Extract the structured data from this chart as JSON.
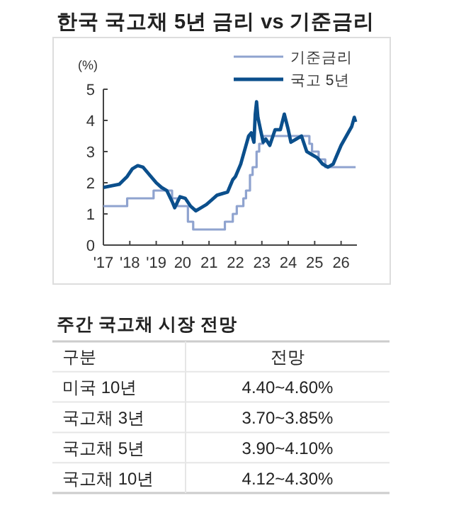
{
  "chart_data": [
    {
      "type": "line",
      "title": "한국 국고채 5년 금리 vs 기준금리",
      "ylabel": "(%)",
      "legend": "top right",
      "xlim": [
        2017,
        2026.6
      ],
      "ylim": [
        0,
        5
      ],
      "yticks": [
        0,
        1,
        2,
        3,
        4,
        5
      ],
      "xticks": [
        {
          "value": 2017,
          "label": "'17"
        },
        {
          "value": 2018,
          "label": "'18"
        },
        {
          "value": 2019,
          "label": "'19"
        },
        {
          "value": 2020,
          "label": "20"
        },
        {
          "value": 2021,
          "label": "21"
        },
        {
          "value": 2022,
          "label": "22"
        },
        {
          "value": 2023,
          "label": "23"
        },
        {
          "value": 2024,
          "label": "24"
        },
        {
          "value": 2025,
          "label": "25"
        },
        {
          "value": 2026,
          "label": "26"
        }
      ],
      "series": [
        {
          "name": "기준금리",
          "type": "step",
          "color": "#8fa3cf",
          "x": [
            2017,
            2017.9,
            2018.9,
            2019.6,
            2019.8,
            2020.2,
            2020.4,
            2021.6,
            2021.9,
            2022.05,
            2022.3,
            2022.4,
            2022.55,
            2022.65,
            2022.8,
            2022.9,
            2023.05,
            2024.8,
            2024.9,
            2025.15,
            2025.4,
            2026.55
          ],
          "values": [
            1.25,
            1.5,
            1.75,
            1.5,
            1.25,
            0.75,
            0.5,
            0.75,
            1.0,
            1.25,
            1.5,
            1.75,
            2.25,
            2.5,
            3.0,
            3.25,
            3.5,
            3.25,
            3.0,
            2.75,
            2.5,
            2.5
          ]
        },
        {
          "name": "국고 5년",
          "type": "line",
          "color": "#0b4f8c",
          "x": [
            2017,
            2017.3,
            2017.6,
            2017.9,
            2018.1,
            2018.3,
            2018.5,
            2018.8,
            2019,
            2019.2,
            2019.4,
            2019.6,
            2019.7,
            2019.9,
            2020.1,
            2020.3,
            2020.5,
            2020.7,
            2020.9,
            2021.1,
            2021.3,
            2021.5,
            2021.7,
            2021.9,
            2022,
            2022.2,
            2022.4,
            2022.5,
            2022.6,
            2022.7,
            2022.75,
            2022.8,
            2022.85,
            2022.95,
            2023.05,
            2023.15,
            2023.3,
            2023.5,
            2023.7,
            2023.85,
            2024,
            2024.1,
            2024.3,
            2024.5,
            2024.7,
            2024.9,
            2025.1,
            2025.3,
            2025.5,
            2025.7,
            2025.8,
            2026,
            2026.2,
            2026.4,
            2026.5,
            2026.55
          ],
          "values": [
            1.85,
            1.9,
            1.95,
            2.2,
            2.45,
            2.55,
            2.5,
            2.2,
            2.0,
            1.85,
            1.75,
            1.4,
            1.2,
            1.55,
            1.5,
            1.25,
            1.1,
            1.2,
            1.3,
            1.45,
            1.6,
            1.65,
            1.7,
            2.1,
            2.2,
            2.6,
            3.2,
            3.5,
            3.6,
            3.3,
            4.2,
            4.6,
            4.1,
            3.7,
            3.3,
            3.4,
            3.2,
            3.7,
            3.7,
            4.2,
            3.7,
            3.3,
            3.4,
            3.5,
            3.0,
            2.9,
            2.8,
            2.6,
            2.5,
            2.6,
            2.8,
            3.2,
            3.5,
            3.8,
            4.1,
            3.95
          ]
        }
      ]
    },
    {
      "type": "other",
      "title": "주간 국고채 시장 전망",
      "annotations": [
        "구분",
        "전망",
        "미국 10년",
        "4.40~4.60%",
        "국고채 3년",
        "3.70~3.85%",
        "국고채 5년",
        "3.90~4.10%",
        "국고채 10년",
        "4.12~4.30%"
      ]
    }
  ]
}
